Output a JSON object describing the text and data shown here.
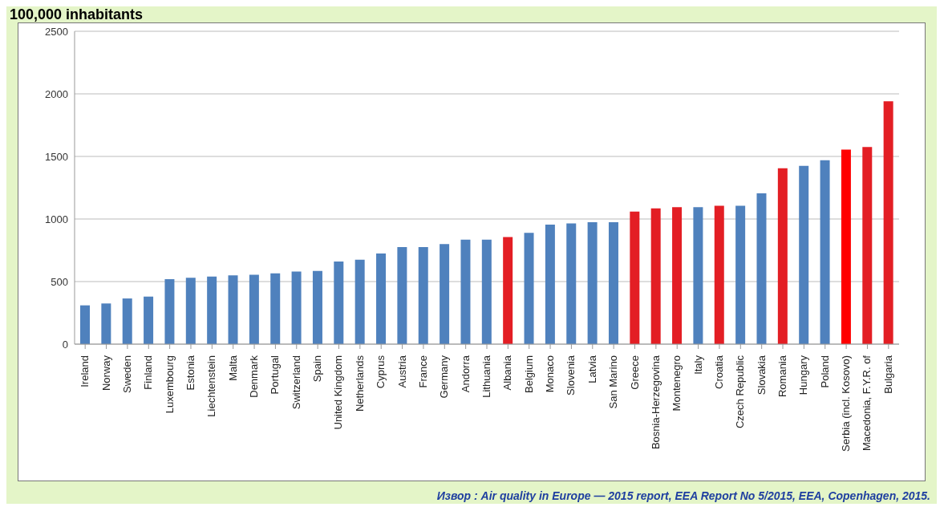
{
  "chart_data": {
    "type": "bar",
    "title": "100,000 inhabitants",
    "categories": [
      "Ireland",
      "Norway",
      "Sweden",
      "Finland",
      "Luxembourg",
      "Estonia",
      "Liechtenstein",
      "Malta",
      "Denmark",
      "Portugal",
      "Switzerland",
      "Spain",
      "United Kingdom",
      "Netherlands",
      "Cyprus",
      "Austria",
      "France",
      "Germany",
      "Andorra",
      "Lithuania",
      "Albania",
      "Belgium",
      "Monaco",
      "Slovenia",
      "Latvia",
      "San Marino",
      "Greece",
      "Bosnia-Herzegovina",
      "Montenegro",
      "Italy",
      "Croatia",
      "Czech Republic",
      "Slovakia",
      "Romania",
      "Hungary",
      "Poland",
      "Serbia (incl. Kosovo)",
      "Macedonia, F.Y.R. of",
      "Bulgaria"
    ],
    "values": [
      310,
      325,
      365,
      380,
      520,
      530,
      540,
      550,
      555,
      565,
      580,
      585,
      660,
      675,
      725,
      775,
      775,
      800,
      835,
      835,
      855,
      890,
      955,
      965,
      975,
      975,
      1060,
      1085,
      1095,
      1095,
      1105,
      1105,
      1205,
      1405,
      1425,
      1470,
      1555,
      1575,
      1940
    ],
    "colors": [
      "#4f81bd",
      "#4f81bd",
      "#4f81bd",
      "#4f81bd",
      "#4f81bd",
      "#4f81bd",
      "#4f81bd",
      "#4f81bd",
      "#4f81bd",
      "#4f81bd",
      "#4f81bd",
      "#4f81bd",
      "#4f81bd",
      "#4f81bd",
      "#4f81bd",
      "#4f81bd",
      "#4f81bd",
      "#4f81bd",
      "#4f81bd",
      "#4f81bd",
      "#e31e24",
      "#4f81bd",
      "#4f81bd",
      "#4f81bd",
      "#4f81bd",
      "#4f81bd",
      "#e31e24",
      "#e31e24",
      "#e31e24",
      "#4f81bd",
      "#e31e24",
      "#4f81bd",
      "#4f81bd",
      "#e31e24",
      "#4f81bd",
      "#4f81bd",
      "#ff0000",
      "#e31e24",
      "#e31e24"
    ],
    "ylim": [
      0,
      2500
    ],
    "yticks": [
      0,
      500,
      1000,
      1500,
      2000,
      2500
    ],
    "grid": "y",
    "annotations": [
      "Извор : Air quality in Europe — 2015 report, EEA Report No 5/2015, EEA, Copenhagen, 2015."
    ]
  }
}
